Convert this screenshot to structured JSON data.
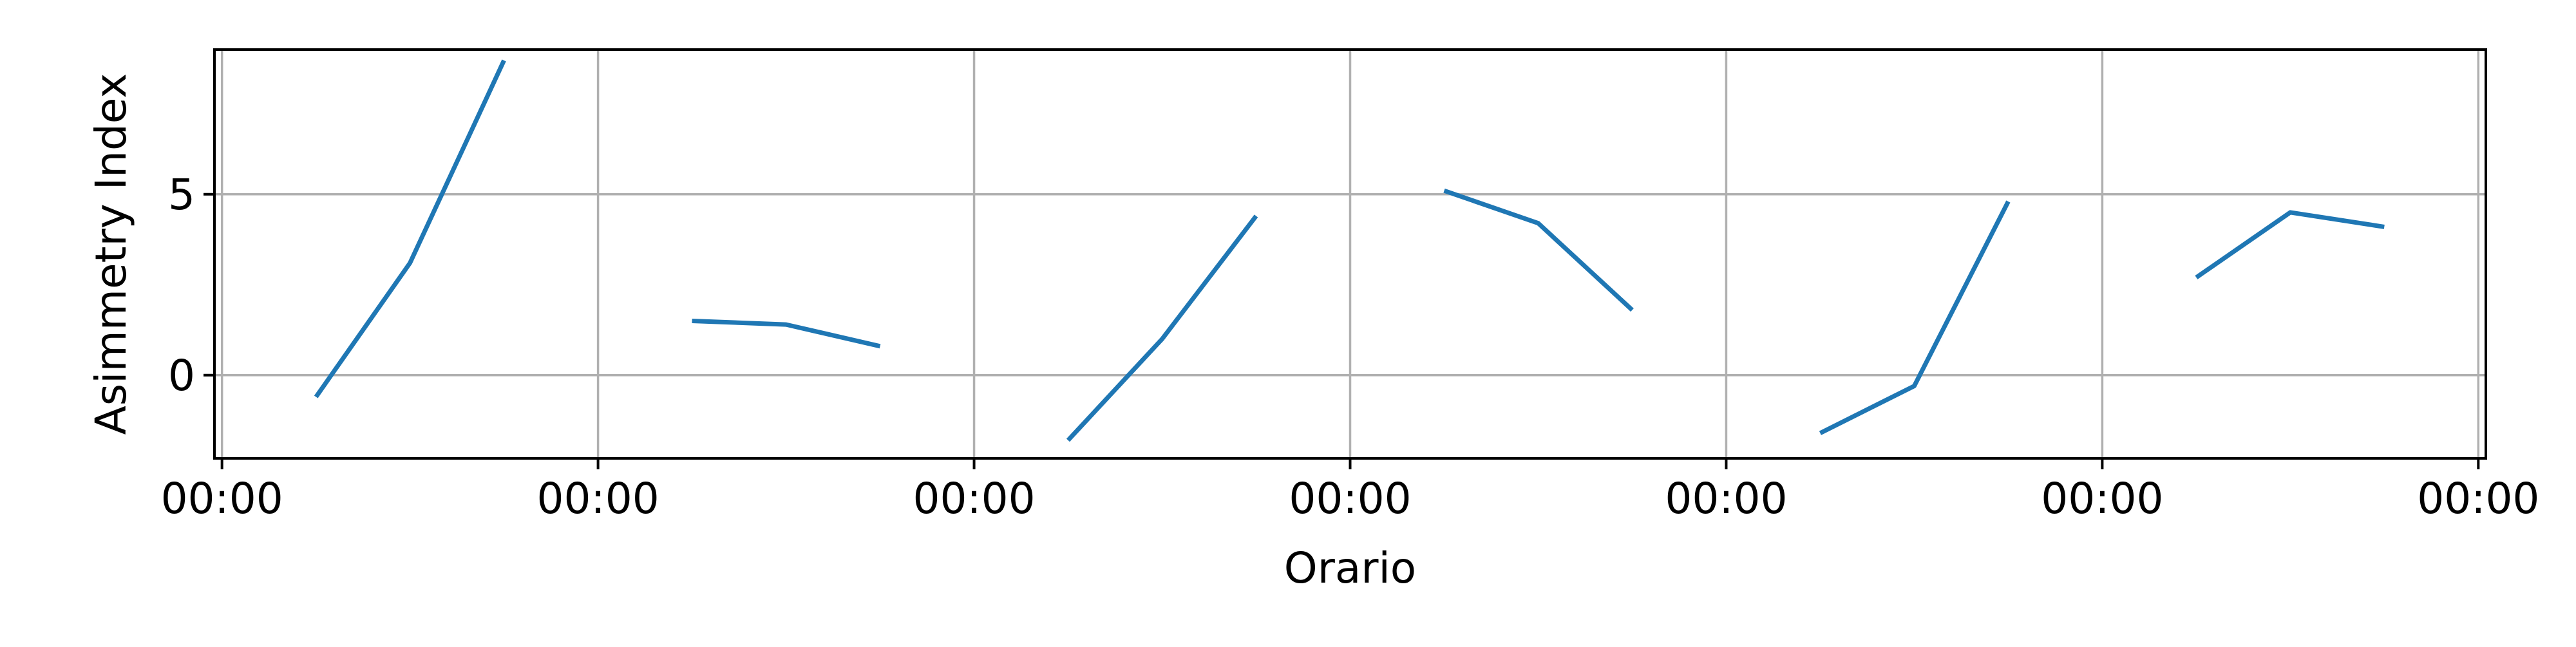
{
  "chart_data": {
    "type": "line",
    "title": "",
    "xlabel": "Orario",
    "ylabel": "Asimmetry Index",
    "grid": true,
    "legend": "none",
    "colors": {
      "line": "#1f77b4",
      "grid": "#b0b0b0",
      "axes": "#000000"
    },
    "x_ticks": [
      "00:00",
      "00:00",
      "00:00",
      "00:00",
      "00:00",
      "00:00",
      "00:00"
    ],
    "y_ticks": [
      0,
      5
    ],
    "xlim": [
      -0.02,
      6.02
    ],
    "ylim": [
      -2.3,
      9.0
    ],
    "series": [
      {
        "x": [
          0.25,
          0.5,
          0.75
        ],
        "y": [
          -0.6,
          3.1,
          8.7
        ]
      },
      {
        "x": [
          1.25,
          1.5,
          1.75
        ],
        "y": [
          1.5,
          1.4,
          0.8
        ]
      },
      {
        "x": [
          2.25,
          2.5,
          2.75
        ],
        "y": [
          -1.8,
          1.0,
          4.4
        ]
      },
      {
        "x": [
          3.25,
          3.5,
          3.75
        ],
        "y": [
          5.1,
          4.2,
          1.8
        ]
      },
      {
        "x": [
          4.25,
          4.5,
          4.75
        ],
        "y": [
          -1.6,
          -0.3,
          4.8
        ]
      },
      {
        "x": [
          5.25,
          5.5,
          5.75
        ],
        "y": [
          2.7,
          4.5,
          4.1
        ]
      }
    ]
  }
}
